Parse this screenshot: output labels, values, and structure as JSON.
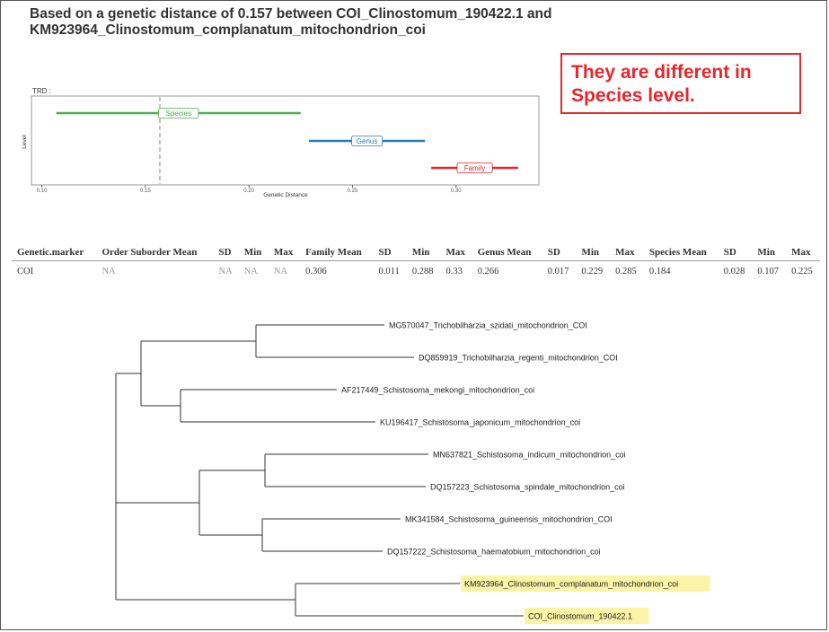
{
  "heading": "Based on a genetic distance of 0.157 between COI_Clinostomum_190422.1 and KM923964_Clinostomum_complanatum_mitochondrion_coi",
  "callout": "They are different in Species level.",
  "colors": {
    "callout": "#e8262b",
    "species": "#4caf50",
    "genus": "#2f7ab8",
    "family": "#e8262b",
    "highlight": "#fbf3a6"
  },
  "chart_data": {
    "type": "range",
    "title": "TRD :",
    "xlabel": "Genetic Distance",
    "ylabel": "Level",
    "xlim": [
      0.095,
      0.34
    ],
    "xticks": [
      "0.10",
      "0.15",
      "0.20",
      "0.25",
      "0.30"
    ],
    "reference_line": 0.157,
    "ranges": [
      {
        "name": "Species",
        "min": 0.107,
        "max": 0.225
      },
      {
        "name": "Genus",
        "min": 0.229,
        "max": 0.285
      },
      {
        "name": "Family",
        "min": 0.288,
        "max": 0.33
      }
    ]
  },
  "table": {
    "headers": [
      "Genetic.marker",
      "Order Suborder Mean",
      "SD",
      "Min",
      "Max",
      "Family Mean",
      "SD",
      "Min",
      "Max",
      "Genus Mean",
      "SD",
      "Min",
      "Max",
      "Species Mean",
      "SD",
      "Min",
      "Max"
    ],
    "rows": [
      [
        "COI",
        "NA",
        "NA",
        "NA",
        "NA",
        "0.306",
        "0.011",
        "0.288",
        "0.33",
        "0.266",
        "0.017",
        "0.229",
        "0.285",
        "0.184",
        "0.028",
        "0.107",
        "0.225"
      ]
    ]
  },
  "tree": {
    "leaves": [
      {
        "label": "MG570047_Trichobilharzia_szidati_mitochondrion_COI",
        "highlight": false
      },
      {
        "label": "DQ859919_Trichobilharzia_regenti_mitochondrion_COI",
        "highlight": false
      },
      {
        "label": "AF217449_Schistosoma_mekongi_mitochondrion_coi",
        "highlight": false
      },
      {
        "label": "KU196417_Schistosoma_japonicum_mitochondrion_coi",
        "highlight": false
      },
      {
        "label": "MN637821_Schistosoma_indicum_mitochondrion_coi",
        "highlight": false
      },
      {
        "label": "DQ157223_Schistosoma_spindale_mitochondrion_coi",
        "highlight": false
      },
      {
        "label": "MK341584_Schistosoma_guineensis_mitochondrion_COI",
        "highlight": false
      },
      {
        "label": "DQ157222_Schistosoma_haematobium_mitochondrion_coi",
        "highlight": false
      },
      {
        "label": "KM923964_Clinostomum_complanatum_mitochondrion_coi",
        "highlight": true
      },
      {
        "label": "COI_Clinostomum_190422.1",
        "highlight": true
      }
    ]
  }
}
